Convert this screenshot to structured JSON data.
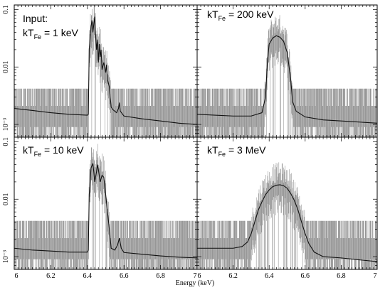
{
  "chart_data": {
    "type": "line",
    "xlabel": "Energy (keV)",
    "xlim": [
      6,
      7
    ],
    "x_ticks": [
      "6",
      "6.2",
      "6.4",
      "6.6",
      "6.8",
      "7"
    ],
    "yscale": "log",
    "ylim": [
      0.0006,
      0.12
    ],
    "y_ticks": [
      {
        "value": 0.1,
        "label": "0.1"
      },
      {
        "value": 0.01,
        "label": "0.01"
      },
      {
        "value": 0.001,
        "label": "10⁻³"
      }
    ],
    "panels": [
      {
        "label_lines": [
          "Input:",
          "kT",
          "Fe",
          " = 1 keV"
        ],
        "model_points": [
          [
            6.0,
            0.0019
          ],
          [
            6.1,
            0.00175
          ],
          [
            6.2,
            0.0016
          ],
          [
            6.3,
            0.0015
          ],
          [
            6.4,
            0.00145
          ],
          [
            6.405,
            0.0015
          ],
          [
            6.41,
            0.02
          ],
          [
            6.42,
            0.05
          ],
          [
            6.425,
            0.065
          ],
          [
            6.43,
            0.04
          ],
          [
            6.435,
            0.055
          ],
          [
            6.44,
            0.075
          ],
          [
            6.445,
            0.035
          ],
          [
            6.45,
            0.02
          ],
          [
            6.455,
            0.03
          ],
          [
            6.46,
            0.012
          ],
          [
            6.465,
            0.025
          ],
          [
            6.47,
            0.015
          ],
          [
            6.475,
            0.02
          ],
          [
            6.48,
            0.009
          ],
          [
            6.49,
            0.012
          ],
          [
            6.5,
            0.008
          ],
          [
            6.505,
            0.011
          ],
          [
            6.51,
            0.006
          ],
          [
            6.52,
            0.0045
          ],
          [
            6.53,
            0.002
          ],
          [
            6.54,
            0.0018
          ],
          [
            6.55,
            0.0017
          ],
          [
            6.56,
            0.0016
          ],
          [
            6.57,
            0.0019
          ],
          [
            6.575,
            0.0024
          ],
          [
            6.58,
            0.0017
          ],
          [
            6.6,
            0.0014
          ],
          [
            6.7,
            0.00125
          ],
          [
            6.8,
            0.00115
          ],
          [
            6.9,
            0.00105
          ],
          [
            7.0,
            0.001
          ]
        ]
      },
      {
        "label_lines": [
          "",
          "kT",
          "Fe",
          " = 200 keV"
        ],
        "model_points": [
          [
            6.0,
            0.0015
          ],
          [
            6.1,
            0.00145
          ],
          [
            6.2,
            0.0014
          ],
          [
            6.3,
            0.0014
          ],
          [
            6.36,
            0.0016
          ],
          [
            6.38,
            0.003
          ],
          [
            6.39,
            0.012
          ],
          [
            6.4,
            0.025
          ],
          [
            6.42,
            0.032
          ],
          [
            6.44,
            0.035
          ],
          [
            6.46,
            0.033
          ],
          [
            6.48,
            0.028
          ],
          [
            6.5,
            0.018
          ],
          [
            6.52,
            0.006
          ],
          [
            6.53,
            0.0025
          ],
          [
            6.55,
            0.0017
          ],
          [
            6.6,
            0.00135
          ],
          [
            6.7,
            0.0012
          ],
          [
            6.8,
            0.00115
          ],
          [
            6.9,
            0.0011
          ],
          [
            7.0,
            0.00105
          ]
        ]
      },
      {
        "label_lines": [
          "",
          "kT",
          "Fe",
          " = 10 keV"
        ],
        "model_points": [
          [
            6.0,
            0.0014
          ],
          [
            6.1,
            0.0013
          ],
          [
            6.2,
            0.00125
          ],
          [
            6.3,
            0.0012
          ],
          [
            6.4,
            0.0012
          ],
          [
            6.405,
            0.0013
          ],
          [
            6.41,
            0.012
          ],
          [
            6.42,
            0.035
          ],
          [
            6.43,
            0.042
          ],
          [
            6.435,
            0.03
          ],
          [
            6.44,
            0.02
          ],
          [
            6.45,
            0.03
          ],
          [
            6.455,
            0.04
          ],
          [
            6.46,
            0.033
          ],
          [
            6.47,
            0.02
          ],
          [
            6.48,
            0.026
          ],
          [
            6.49,
            0.024
          ],
          [
            6.5,
            0.012
          ],
          [
            6.51,
            0.006
          ],
          [
            6.52,
            0.003
          ],
          [
            6.53,
            0.0014
          ],
          [
            6.55,
            0.0013
          ],
          [
            6.565,
            0.0016
          ],
          [
            6.575,
            0.0021
          ],
          [
            6.585,
            0.0014
          ],
          [
            6.6,
            0.00118
          ],
          [
            6.7,
            0.0011
          ],
          [
            6.8,
            0.00103
          ],
          [
            6.9,
            0.00098
          ],
          [
            7.0,
            0.00095
          ]
        ]
      },
      {
        "label_lines": [
          "",
          "kT",
          "Fe",
          " = 3 MeV"
        ],
        "model_points": [
          [
            6.0,
            0.0014
          ],
          [
            6.1,
            0.0014
          ],
          [
            6.2,
            0.0014
          ],
          [
            6.25,
            0.0015
          ],
          [
            6.28,
            0.0018
          ],
          [
            6.3,
            0.0025
          ],
          [
            6.32,
            0.004
          ],
          [
            6.34,
            0.0065
          ],
          [
            6.36,
            0.009
          ],
          [
            6.38,
            0.012
          ],
          [
            6.4,
            0.0145
          ],
          [
            6.42,
            0.0165
          ],
          [
            6.44,
            0.0175
          ],
          [
            6.46,
            0.0178
          ],
          [
            6.48,
            0.0172
          ],
          [
            6.5,
            0.0155
          ],
          [
            6.52,
            0.0125
          ],
          [
            6.54,
            0.0095
          ],
          [
            6.56,
            0.0065
          ],
          [
            6.58,
            0.004
          ],
          [
            6.6,
            0.0025
          ],
          [
            6.62,
            0.0017
          ],
          [
            6.65,
            0.0012
          ],
          [
            6.7,
            0.001
          ],
          [
            6.8,
            0.00095
          ],
          [
            6.9,
            0.00088
          ],
          [
            7.0,
            0.00082
          ]
        ]
      }
    ]
  }
}
